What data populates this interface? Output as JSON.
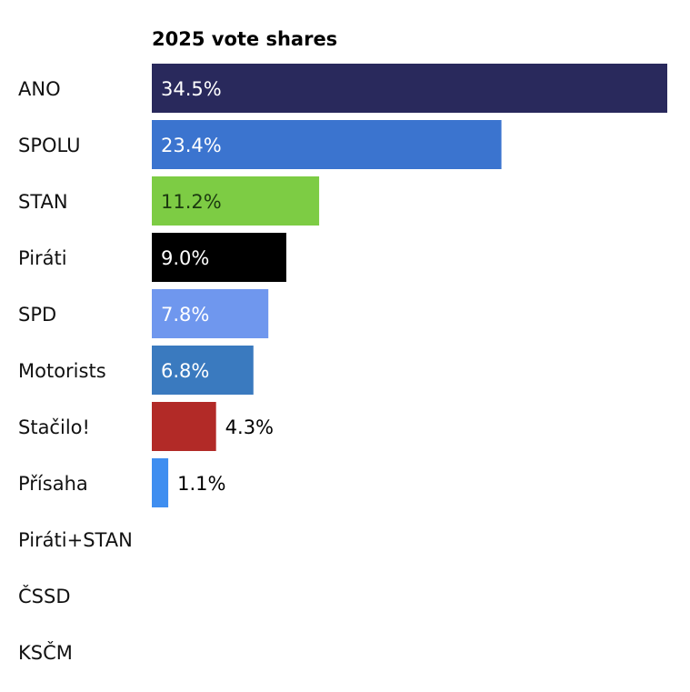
{
  "chart_data": {
    "type": "bar",
    "orientation": "horizontal",
    "title": "2025 vote shares",
    "xlabel": "",
    "ylabel": "",
    "xlim": [
      0,
      34.5
    ],
    "grid": false,
    "categories": [
      "ANO",
      "SPOLU",
      "STAN",
      "Piráti",
      "SPD",
      "Motorists",
      "Stačilo!",
      "Přísaha",
      "Piráti+STAN",
      "ČSSD",
      "KSČM"
    ],
    "values": [
      34.5,
      23.4,
      11.2,
      9.0,
      7.8,
      6.8,
      4.3,
      1.1,
      null,
      null,
      null
    ],
    "labels": [
      "34.5%",
      "23.4%",
      "11.2%",
      "9.0%",
      "7.8%",
      "6.8%",
      "4.3%",
      "1.1%",
      "",
      "",
      ""
    ],
    "colors": [
      "#29295c",
      "#3b74cf",
      "#7dcc44",
      "#000000",
      "#6f97ee",
      "#3a7abf",
      "#b22a27",
      "#3f8ef0",
      "",
      "",
      ""
    ],
    "label_colors": [
      "#ffffff",
      "#ffffff",
      "#1c3a10",
      "#ffffff",
      "#ffffff",
      "#ffffff",
      "#000000",
      "#000000",
      "",
      "",
      ""
    ]
  }
}
